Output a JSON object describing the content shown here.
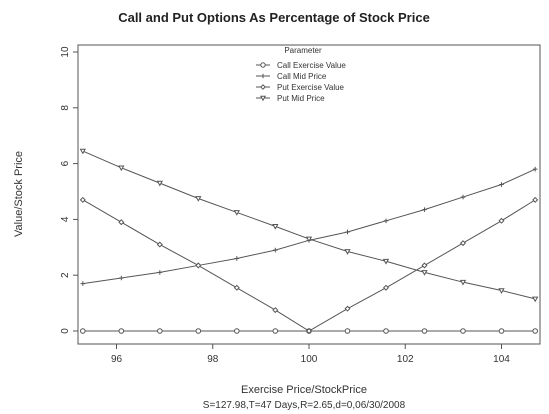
{
  "chart_data": {
    "type": "line",
    "title": "Call and Put Options As Percentage of Stock Price",
    "xlabel": "Exercise Price/StockPrice",
    "subtitle": "S=127.98,T=47 Days,R=2.65,d=0,06/30/2008",
    "ylabel": "Value/Stock Price",
    "xlim": [
      95.2,
      104.8
    ],
    "ylim": [
      0,
      10
    ],
    "x_ticks": [
      96,
      98,
      100,
      102,
      104
    ],
    "y_ticks": [
      0,
      2,
      4,
      6,
      8,
      10
    ],
    "legend": {
      "title": "Parameter",
      "position": "top-center"
    },
    "x": [
      95.3,
      96.1,
      96.9,
      97.7,
      98.5,
      99.3,
      100.0,
      100.8,
      101.6,
      102.4,
      103.2,
      104.0,
      104.7
    ],
    "series": [
      {
        "name": "Call Exercise Value",
        "marker": "circle",
        "values": [
          0,
          0,
          0,
          0,
          0,
          0,
          0,
          0,
          0,
          0,
          0,
          0,
          0
        ]
      },
      {
        "name": "Call Mid Price",
        "marker": "plus",
        "values": [
          1.7,
          1.9,
          2.1,
          2.35,
          2.6,
          2.9,
          3.25,
          3.55,
          3.95,
          4.35,
          4.8,
          5.25,
          5.8
        ]
      },
      {
        "name": "Put Exercise Value",
        "marker": "diamond",
        "values": [
          4.7,
          3.9,
          3.1,
          2.35,
          1.55,
          0.75,
          0,
          0.8,
          1.55,
          2.35,
          3.15,
          3.95,
          4.7
        ]
      },
      {
        "name": "Put Mid Price",
        "marker": "triangle-down",
        "values": [
          6.45,
          5.85,
          5.3,
          4.75,
          4.25,
          3.75,
          3.3,
          2.85,
          2.5,
          2.1,
          1.75,
          1.45,
          1.15
        ]
      }
    ],
    "colors": {
      "line": "#555555",
      "axis": "#555555"
    }
  }
}
